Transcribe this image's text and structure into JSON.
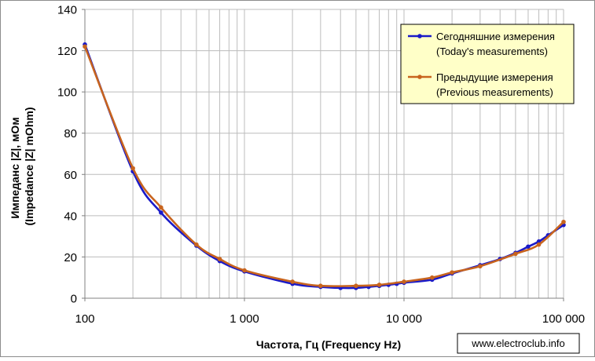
{
  "colors": {
    "today": "#1a1ac8",
    "previous": "#c8641e",
    "grid": "#bcbcbc",
    "legend_bg": "#ffffc8",
    "axis_text": "#000000"
  },
  "watermark": "www.electroclub.info",
  "chart_data": {
    "type": "line",
    "title": "",
    "xlabel": "Частота, Гц (Frequency Hz)",
    "ylabel_line1": "Импеданс |Z|, мОм",
    "ylabel_line2": "(Impedance |Z| mOhm)",
    "x_scale": "log",
    "xlim": [
      100,
      100000
    ],
    "ylim": [
      0,
      140
    ],
    "grid": true,
    "legend_position": "top-right",
    "x_ticks": [
      {
        "value": 100,
        "label": "100"
      },
      {
        "value": 1000,
        "label": "1 000"
      },
      {
        "value": 10000,
        "label": "10 000"
      },
      {
        "value": 100000,
        "label": "100 000"
      }
    ],
    "y_ticks": [
      {
        "value": 0,
        "label": "0"
      },
      {
        "value": 20,
        "label": "20"
      },
      {
        "value": 40,
        "label": "40"
      },
      {
        "value": 60,
        "label": "60"
      },
      {
        "value": 80,
        "label": "80"
      },
      {
        "value": 100,
        "label": "100"
      },
      {
        "value": 120,
        "label": "120"
      },
      {
        "value": 140,
        "label": "140"
      }
    ],
    "series": [
      {
        "name_line1": "Сегодняшние измерения",
        "name_line2": "(Today's measurements)",
        "color": "#1a1ac8",
        "points": [
          [
            100,
            123
          ],
          [
            200,
            61.5
          ],
          [
            300,
            41.5
          ],
          [
            500,
            25.5
          ],
          [
            700,
            18
          ],
          [
            1000,
            13
          ],
          [
            2000,
            7
          ],
          [
            3000,
            5.5
          ],
          [
            4000,
            5
          ],
          [
            5000,
            5
          ],
          [
            6000,
            5.5
          ],
          [
            7000,
            6
          ],
          [
            8000,
            6.5
          ],
          [
            9000,
            7
          ],
          [
            10000,
            7.5
          ],
          [
            15000,
            9
          ],
          [
            20000,
            12
          ],
          [
            30000,
            16
          ],
          [
            40000,
            19
          ],
          [
            50000,
            22
          ],
          [
            60000,
            25
          ],
          [
            70000,
            27.5
          ],
          [
            80000,
            30.5
          ],
          [
            100000,
            35.5
          ]
        ]
      },
      {
        "name_line1": "Предыдущие измерения",
        "name_line2": "(Previous measurements)",
        "color": "#c8641e",
        "points": [
          [
            100,
            122
          ],
          [
            200,
            63
          ],
          [
            300,
            44
          ],
          [
            500,
            26
          ],
          [
            700,
            19
          ],
          [
            1000,
            13.5
          ],
          [
            2000,
            8
          ],
          [
            3000,
            6
          ],
          [
            5000,
            6
          ],
          [
            7000,
            6.5
          ],
          [
            10000,
            8
          ],
          [
            15000,
            10
          ],
          [
            20000,
            12.5
          ],
          [
            30000,
            15.5
          ],
          [
            50000,
            21.5
          ],
          [
            70000,
            26
          ],
          [
            100000,
            37
          ]
        ]
      }
    ]
  }
}
